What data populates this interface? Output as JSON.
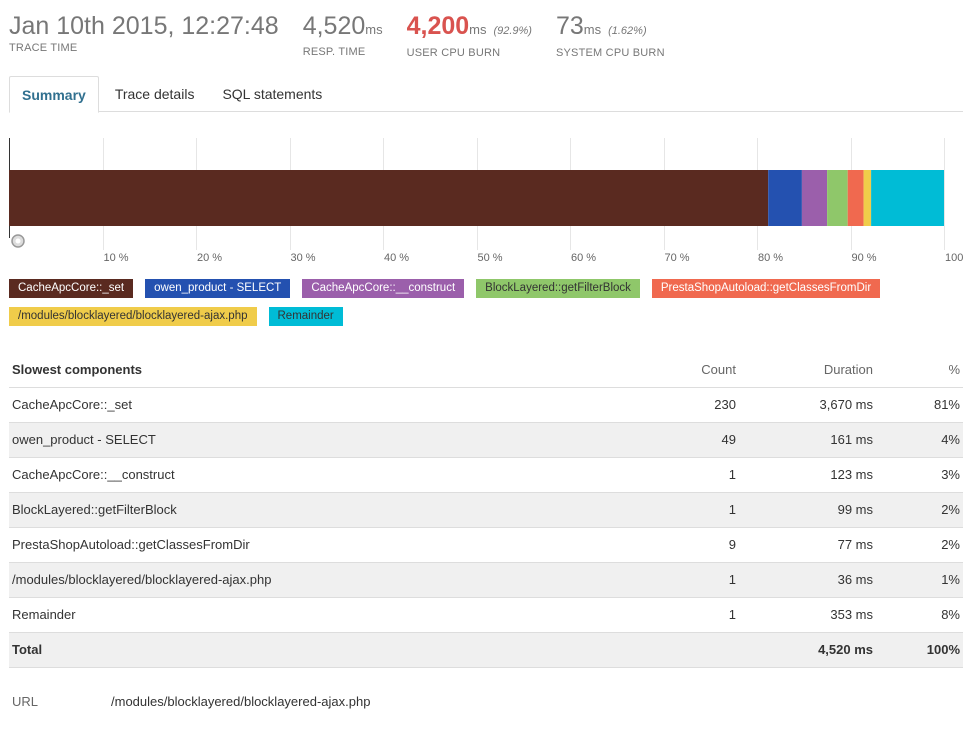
{
  "metrics": {
    "trace_time": {
      "value": "Jan 10th 2015, 12:27:48",
      "label": "TRACE TIME"
    },
    "resp_time": {
      "value": "4,520",
      "unit": "ms",
      "label": "RESP. TIME"
    },
    "user_cpu": {
      "value": "4,200",
      "unit": "ms",
      "pct": "(92.9%)",
      "label": "USER CPU BURN"
    },
    "system_cpu": {
      "value": "73",
      "unit": "ms",
      "pct": "(1.62%)",
      "label": "SYSTEM CPU BURN"
    }
  },
  "tabs": [
    {
      "label": "Summary",
      "active": true
    },
    {
      "label": "Trace details",
      "active": false
    },
    {
      "label": "SQL statements",
      "active": false
    }
  ],
  "chart_data": {
    "type": "bar",
    "orientation": "horizontal-stacked",
    "xlim": [
      0,
      100
    ],
    "ticks": [
      "10 %",
      "20 %",
      "30 %",
      "40 %",
      "50 %",
      "60 %",
      "70 %",
      "80 %",
      "90 %",
      "100"
    ],
    "tick_values": [
      10,
      20,
      30,
      40,
      50,
      60,
      70,
      80,
      90,
      100
    ],
    "grid": true,
    "series": [
      {
        "name": "CacheApcCore::_set",
        "value": 81.2,
        "color": "#5a2a20"
      },
      {
        "name": "owen_product - SELECT",
        "value": 3.6,
        "color": "#2451b0"
      },
      {
        "name": "CacheApcCore::__construct",
        "value": 2.7,
        "color": "#9b5fab"
      },
      {
        "name": "BlockLayered::getFilterBlock",
        "value": 2.2,
        "color": "#8fc76a"
      },
      {
        "name": "PrestaShopAutoload::getClassesFromDir",
        "value": 1.7,
        "color": "#f0694f"
      },
      {
        "name": "/modules/blocklayered/blocklayered-ajax.php",
        "value": 0.8,
        "color": "#f0cc4a"
      },
      {
        "name": "Remainder",
        "value": 7.8,
        "color": "#00bcd6"
      }
    ]
  },
  "legend": [
    {
      "label": "CacheApcCore::_set",
      "color": "#5a2a20",
      "light": false
    },
    {
      "label": "owen_product - SELECT",
      "color": "#2451b0",
      "light": false
    },
    {
      "label": "CacheApcCore::__construct",
      "color": "#9b5fab",
      "light": false
    },
    {
      "label": "BlockLayered::getFilterBlock",
      "color": "#8fc76a",
      "light": true
    },
    {
      "label": "PrestaShopAutoload::getClassesFromDir",
      "color": "#f0694f",
      "light": false
    },
    {
      "label": "/modules/blocklayered/blocklayered-ajax.php",
      "color": "#f0cc4a",
      "light": true
    },
    {
      "label": "Remainder",
      "color": "#00bcd6",
      "light": true
    }
  ],
  "table": {
    "headers": {
      "name": "Slowest components",
      "count": "Count",
      "duration": "Duration",
      "pct": "%"
    },
    "rows": [
      {
        "name": "CacheApcCore::_set",
        "count": "230",
        "duration": "3,670 ms",
        "pct": "81%"
      },
      {
        "name": "owen_product - SELECT",
        "count": "49",
        "duration": "161 ms",
        "pct": "4%"
      },
      {
        "name": "CacheApcCore::__construct",
        "count": "1",
        "duration": "123 ms",
        "pct": "3%"
      },
      {
        "name": "BlockLayered::getFilterBlock",
        "count": "1",
        "duration": "99 ms",
        "pct": "2%"
      },
      {
        "name": "PrestaShopAutoload::getClassesFromDir",
        "count": "9",
        "duration": "77 ms",
        "pct": "2%"
      },
      {
        "name": "/modules/blocklayered/blocklayered-ajax.php",
        "count": "1",
        "duration": "36 ms",
        "pct": "1%"
      },
      {
        "name": "Remainder",
        "count": "1",
        "duration": "353 ms",
        "pct": "8%"
      }
    ],
    "total": {
      "name": "Total",
      "count": "",
      "duration": "4,520 ms",
      "pct": "100%"
    }
  },
  "url": {
    "label": "URL",
    "value": "/modules/blocklayered/blocklayered-ajax.php"
  }
}
